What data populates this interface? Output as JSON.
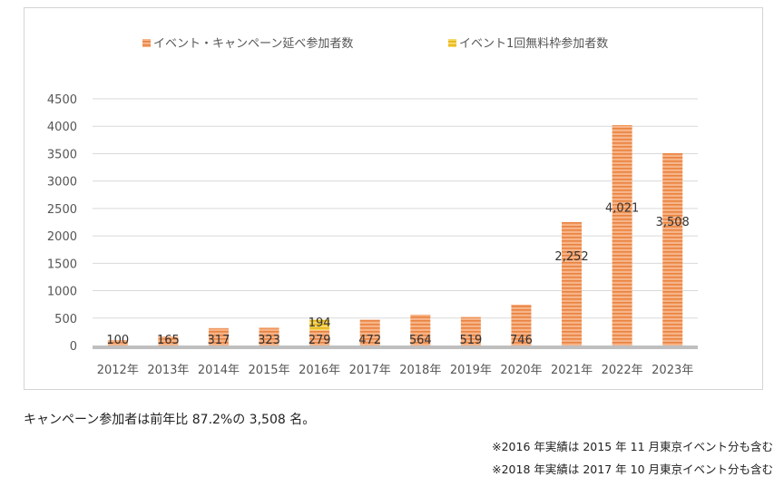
{
  "chart_data": {
    "type": "bar",
    "categories": [
      "2012年",
      "2013年",
      "2014年",
      "2015年",
      "2016年",
      "2017年",
      "2018年",
      "2019年",
      "2020年",
      "2021年",
      "2022年",
      "2023年"
    ],
    "series": [
      {
        "name": "イベント・キャンペーン延べ参加者数",
        "values": [
          100,
          165,
          317,
          323,
          279,
          472,
          564,
          519,
          746,
          2252,
          4021,
          3508
        ],
        "labels": [
          "100",
          "165",
          "317",
          "323",
          "279",
          "472",
          "564",
          "519",
          "746",
          "2,252",
          "4,021",
          "3,508"
        ],
        "color": "#f4a06a"
      },
      {
        "name": "イベント1回無料枠参加者数",
        "values": [
          null,
          null,
          null,
          null,
          194,
          null,
          null,
          null,
          null,
          null,
          null,
          null
        ],
        "labels": [
          "",
          "",
          "",
          "",
          "194",
          "",
          "",
          "",
          "",
          "",
          "",
          ""
        ],
        "color": "#f2c52a"
      }
    ],
    "y_ticks": [
      "0",
      "500",
      "1000",
      "1500",
      "2000",
      "2500",
      "3000",
      "3500",
      "4000",
      "4500"
    ],
    "ylim": [
      0,
      4500
    ],
    "grid": true,
    "legend_position": "top"
  },
  "notes": {
    "summary": "キャンペーン参加者は前年比 87.2%の 3,508 名。",
    "footnote_1": "※2016 年実績は 2015 年 11 月東京イベント分も含む",
    "footnote_2": "※2018 年実績は 2017 年 10 月東京イベント分も含む"
  }
}
